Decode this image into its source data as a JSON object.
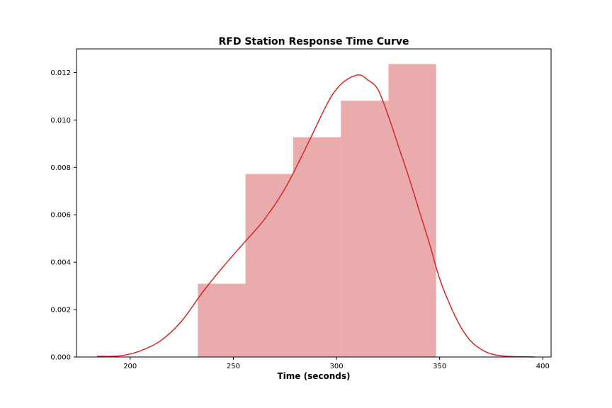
{
  "chart_data": {
    "type": "bar",
    "title": "RFD Station Response Time Curve",
    "xlabel": "Time (seconds)",
    "ylabel": "",
    "xlim": [
      174,
      404
    ],
    "ylim": [
      0,
      0.013
    ],
    "x_ticks": [
      200,
      250,
      300,
      350,
      400
    ],
    "x_tick_labels": [
      "200",
      "250",
      "300",
      "350",
      "400"
    ],
    "y_ticks": [
      0.0,
      0.002,
      0.004,
      0.006,
      0.008,
      0.01,
      0.012
    ],
    "y_tick_labels": [
      "0.000",
      "0.002",
      "0.004",
      "0.006",
      "0.008",
      "0.010",
      "0.012"
    ],
    "grid": false,
    "series": [
      {
        "type": "histogram",
        "color": "#e28a8d",
        "bins": [
          {
            "x0": 232.8,
            "x1": 255.9,
            "density": 0.00309
          },
          {
            "x0": 255.9,
            "x1": 279.0,
            "density": 0.00772
          },
          {
            "x0": 279.0,
            "x1": 302.1,
            "density": 0.00927
          },
          {
            "x0": 302.1,
            "x1": 325.2,
            "density": 0.01081
          },
          {
            "x0": 325.2,
            "x1": 348.3,
            "density": 0.01236
          }
        ]
      },
      {
        "type": "line",
        "color": "#d62728",
        "x": [
          184,
          195,
          205,
          215,
          225,
          235,
          245,
          255,
          265,
          275,
          285,
          295,
          300,
          305,
          311,
          315,
          320,
          325,
          330,
          335,
          340,
          345,
          350,
          355,
          360,
          365,
          370,
          375,
          380,
          385,
          390,
          396
        ],
        "y": [
          3e-05,
          5e-05,
          0.00026,
          0.0007,
          0.00152,
          0.00272,
          0.0038,
          0.0048,
          0.0058,
          0.0071,
          0.0088,
          0.0106,
          0.0113,
          0.0117,
          0.0119,
          0.0117,
          0.0113,
          0.0102,
          0.0089,
          0.0076,
          0.0062,
          0.0048,
          0.0033,
          0.0022,
          0.0013,
          0.00068,
          0.00033,
          0.00013,
          5e-05,
          2e-05,
          1e-05,
          0.0
        ]
      }
    ]
  }
}
